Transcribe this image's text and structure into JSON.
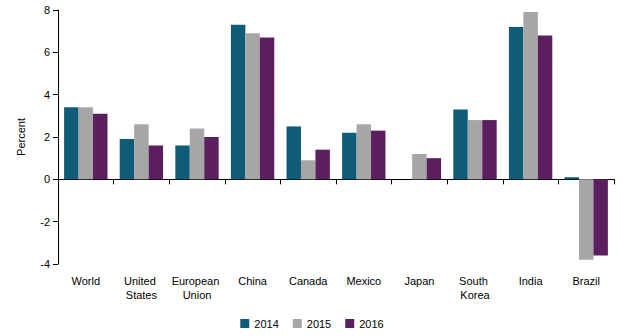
{
  "chart_data": {
    "type": "bar",
    "y_label": "Percent",
    "categories": [
      "World",
      "United States",
      "European Union",
      "China",
      "Canada",
      "Mexico",
      "Japan",
      "South Korea",
      "India",
      "Brazil"
    ],
    "series": [
      {
        "name": "2014",
        "color": "#0f5b78",
        "values": [
          3.4,
          1.9,
          1.6,
          7.3,
          2.5,
          2.2,
          0.0,
          3.3,
          7.2,
          0.1
        ]
      },
      {
        "name": "2015",
        "color": "#a6a6a6",
        "values": [
          3.4,
          2.6,
          2.4,
          6.9,
          0.9,
          2.6,
          1.2,
          2.8,
          7.9,
          -3.8
        ]
      },
      {
        "name": "2016",
        "color": "#5b1f5f",
        "values": [
          3.1,
          1.6,
          2.0,
          6.7,
          1.4,
          2.3,
          1.0,
          2.8,
          6.8,
          -3.6
        ]
      }
    ],
    "ylim": [
      -4,
      8
    ],
    "yticks": [
      -4,
      -2,
      0,
      2,
      4,
      6,
      8
    ],
    "grid": false,
    "legend": "bottom"
  }
}
